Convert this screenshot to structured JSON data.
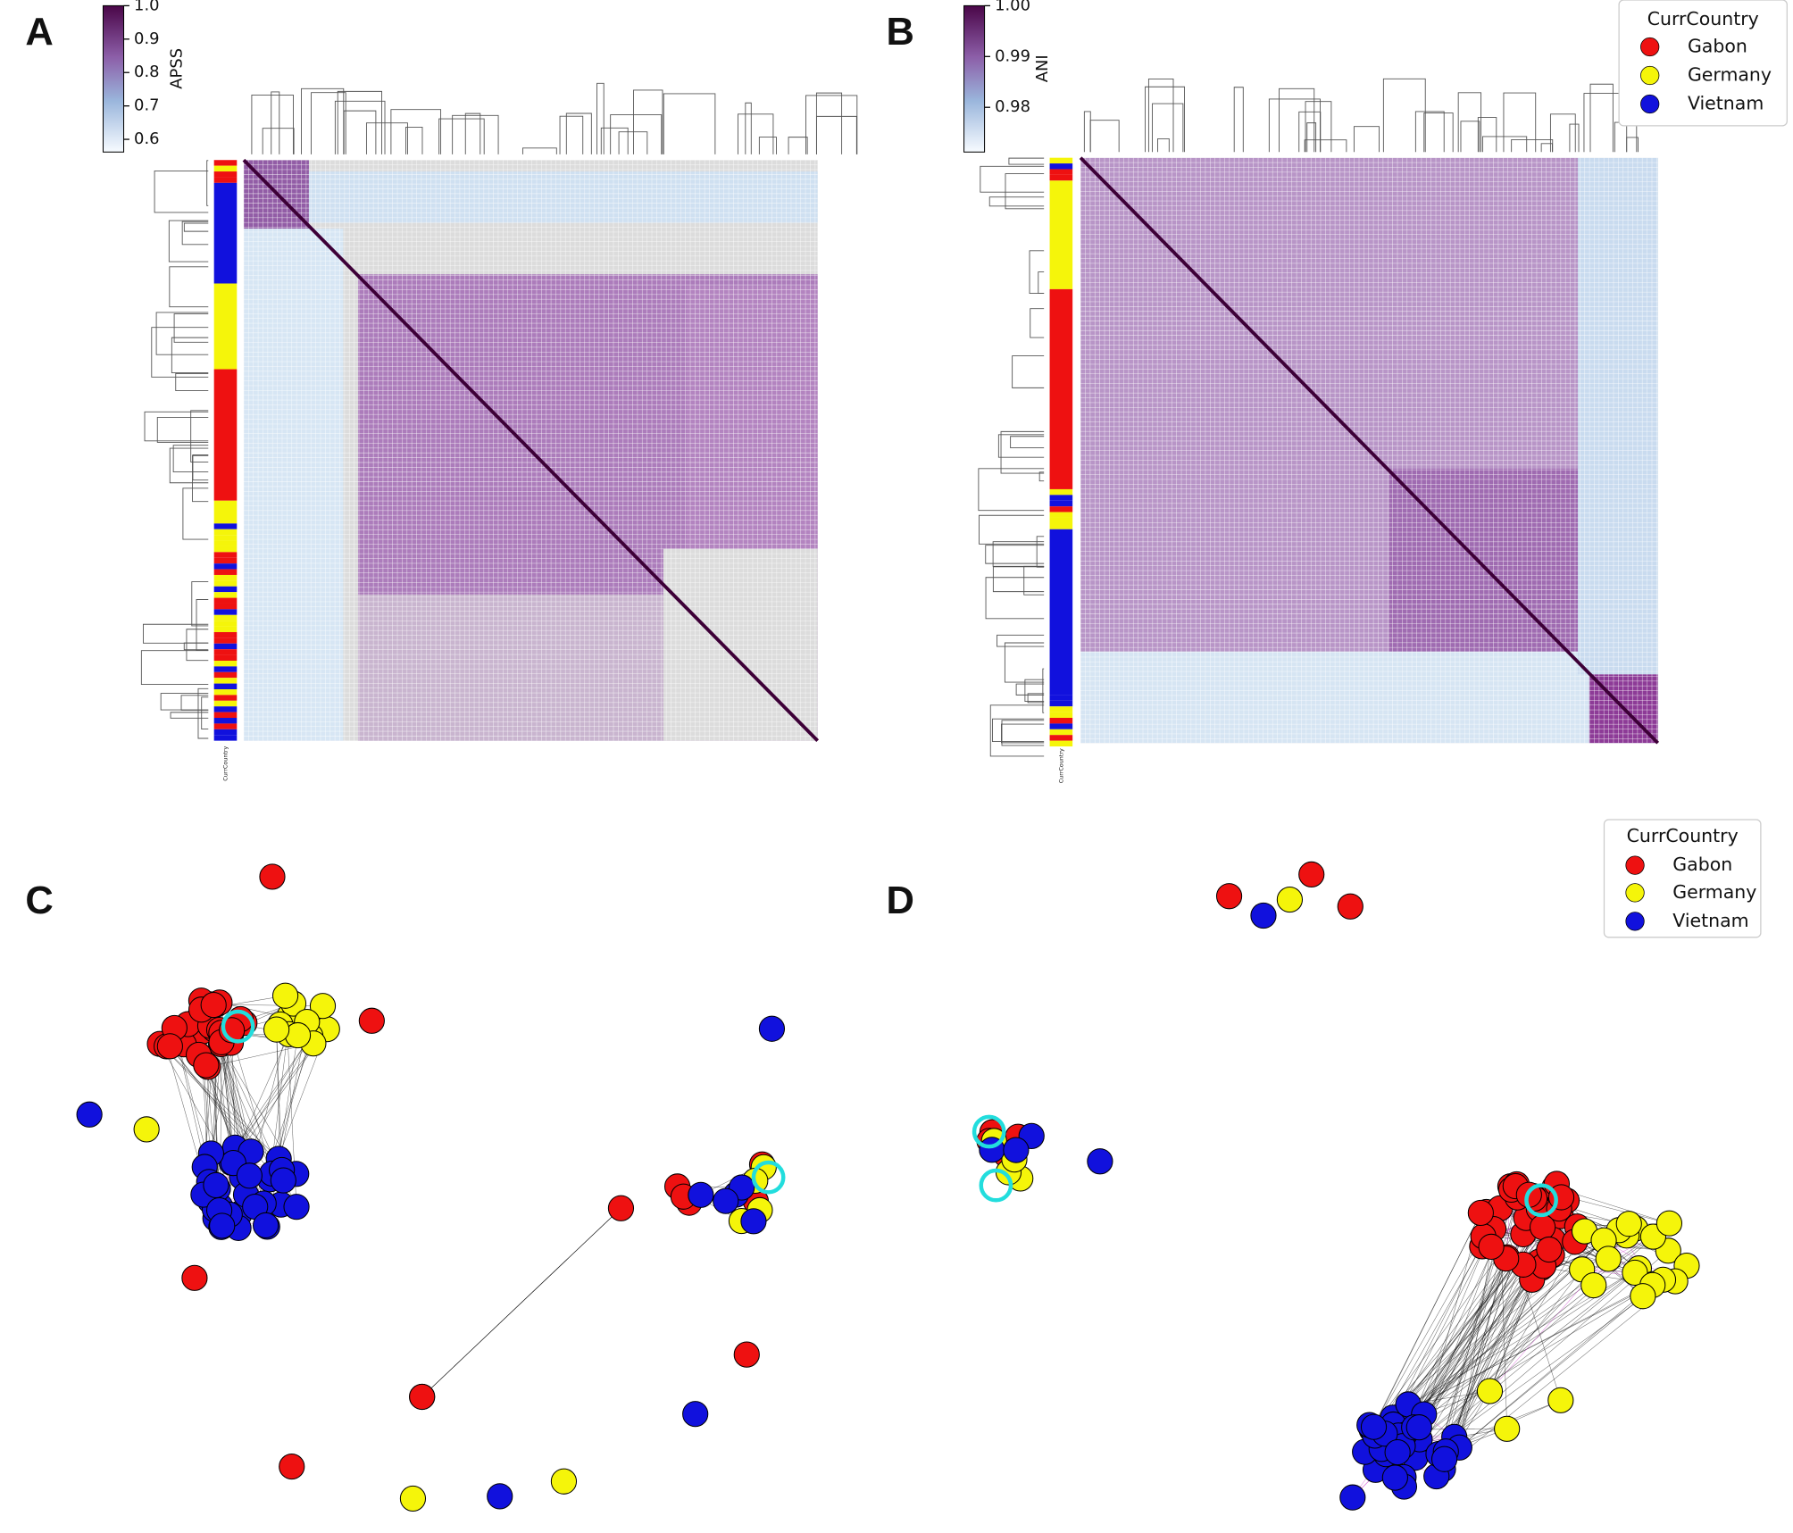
{
  "panels": [
    {
      "label": "A",
      "colorbar": {
        "label": "APSS",
        "lim": [
          0.562,
          1.0
        ],
        "ticks": [
          {
            "value": 1.0,
            "label": "1.0"
          },
          0.9,
          0.8,
          0.7,
          0.6
        ]
      },
      "row_annotation": "CurrCountry"
    },
    {
      "label": "B",
      "colorbar": {
        "label": "ANI",
        "lim": [
          0.9712,
          1.0
        ],
        "ticks": [
          {
            "value": 1.0,
            "label": "1.00"
          },
          0.99,
          0.98
        ]
      },
      "row_annotation": "CurrCountry",
      "legend": {
        "title": "CurrCountry",
        "entries": [
          {
            "name": "Gabon",
            "color": "#ee1111"
          },
          {
            "name": "Germany",
            "color": "#f5f50a"
          },
          {
            "name": "Vietnam",
            "color": "#1111dd"
          }
        ]
      }
    },
    {
      "label": "C"
    },
    {
      "label": "D",
      "legend": {
        "title": "CurrCountry",
        "entries": [
          {
            "name": "Gabon",
            "color": "#ee1111"
          },
          {
            "name": "Germany",
            "color": "#f5f50a"
          },
          {
            "name": "Vietnam",
            "color": "#1111dd"
          }
        ]
      }
    }
  ]
}
